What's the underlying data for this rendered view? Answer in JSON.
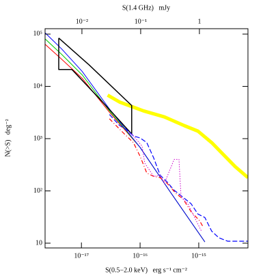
{
  "chart_data": {
    "type": "line",
    "x_label": "S(0.5−2.0 keV)   erg s⁻¹ cm⁻²",
    "y_label": "N(>S)   deg⁻²",
    "x2_label": "S(1.4 GHz)   mJy",
    "xscale": "log",
    "yscale": "log",
    "xlim": [
      2.4e-18,
      6.9e-15
    ],
    "ylim": [
      8.1,
      127000
    ],
    "x2lim": [
      0.00236,
      6.7
    ],
    "xticks": [
      {
        "value": 1e-17,
        "label": "10⁻¹⁷"
      },
      {
        "value": 1e-16,
        "label": "10⁻¹⁶"
      },
      {
        "value": 1e-15,
        "label": "10⁻¹⁵"
      }
    ],
    "x2ticks": [
      {
        "value": 0.01,
        "label": "10⁻²"
      },
      {
        "value": 0.1,
        "label": "10⁻¹"
      },
      1
    ],
    "yticks": [
      10,
      {
        "value": 100,
        "label": "10²"
      },
      {
        "value": 1000,
        "label": "10³"
      },
      {
        "value": 10000,
        "label": "10⁴"
      },
      {
        "value": 100000,
        "label": "10⁵"
      }
    ],
    "series": [
      {
        "color": "#ffff00",
        "width": 5,
        "style": "solid",
        "x": [
          2.8e-17,
          4.5e-17,
          7.7e-17,
          1.14e-16,
          2.6e-16,
          5.7e-16,
          9.7e-16,
          1.66e-15,
          2.8e-15,
          4.2e-15,
          6.9e-15
        ],
        "values": [
          6800,
          5000,
          4000,
          3400,
          2600,
          1770,
          1390,
          840,
          460,
          290,
          180
        ]
      },
      {
        "color": "#ff0000",
        "width": 1,
        "style": "solid",
        "x": [
          2.4e-18,
          4.6e-18,
          1.03e-17,
          3e-17,
          1e-16,
          3.3e-16,
          1.27e-15
        ],
        "values": [
          64000,
          33000,
          14300,
          3200,
          680,
          94,
          10.6
        ]
      },
      {
        "color": "#00cc00",
        "width": 1,
        "style": "solid",
        "x": [
          2.4e-18,
          4.6e-18,
          1.03e-17,
          3e-17,
          1e-16,
          3.3e-16,
          1.27e-15
        ],
        "values": [
          81000,
          41000,
          16600,
          3400,
          680,
          94,
          10.6
        ]
      },
      {
        "color": "#0000ff",
        "width": 1,
        "style": "solid",
        "x": [
          2.4e-18,
          4.6e-18,
          1.03e-17,
          3e-17,
          1e-16,
          3.3e-16,
          1.27e-15
        ],
        "values": [
          106000,
          52000,
          19300,
          3700,
          680,
          94,
          10.6
        ]
      },
      {
        "color": "#000000",
        "width": 1.5,
        "style": "solid",
        "x": [
          4.1e-18,
          1.34e-17,
          7.2e-17,
          7.2e-17,
          2.3e-17,
          6.9e-18,
          4.1e-18,
          4.1e-18
        ],
        "values": [
          84000,
          26000,
          4300,
          1230,
          5000,
          21000,
          21000,
          84000
        ]
      },
      {
        "color": "#0000ff",
        "width": 1.2,
        "style": "dashed",
        "x": [
          3e-17,
          4.5e-17,
          5.8e-17,
          7.7e-17,
          1e-16,
          1.3e-16,
          1.7e-16,
          2.2e-16,
          2.9e-16,
          3.8e-16,
          5e-16,
          7.4e-16,
          9.7e-16,
          1.27e-15,
          1.66e-15,
          2.2e-15,
          3.1e-15,
          6.9e-15
        ],
        "values": [
          2900,
          1770,
          1520,
          1130,
          1030,
          840,
          430,
          200,
          148,
          103,
          81,
          57,
          36,
          31,
          17,
          12.7,
          10.9,
          10.9
        ]
      },
      {
        "color": "#ff0000",
        "width": 1.2,
        "style": "dashdot",
        "x": [
          3e-17,
          5.1e-17,
          7.7e-17,
          1e-16,
          1.3e-16,
          1.7e-16,
          2.2e-16,
          2.9e-16,
          4.1e-16,
          5.4e-16,
          7.4e-16,
          1.03e-15,
          1.2e-15
        ],
        "values": [
          2400,
          1310,
          840,
          460,
          220,
          190,
          180,
          139,
          89,
          70,
          40,
          27,
          20
        ]
      },
      {
        "color": "#cc00cc",
        "width": 1,
        "style": "dotted",
        "x": [
          4.5e-17,
          7.7e-17,
          1.08e-16,
          1.2e-16,
          1.7e-16,
          2.2e-16,
          2.6e-16,
          3.8e-16,
          4.6e-16,
          5e-16,
          6.5e-16,
          8.5e-16,
          1.11e-15
        ],
        "values": [
          1770,
          1130,
          720,
          340,
          190,
          200,
          139,
          400,
          400,
          76,
          57,
          31,
          17
        ]
      }
    ]
  }
}
